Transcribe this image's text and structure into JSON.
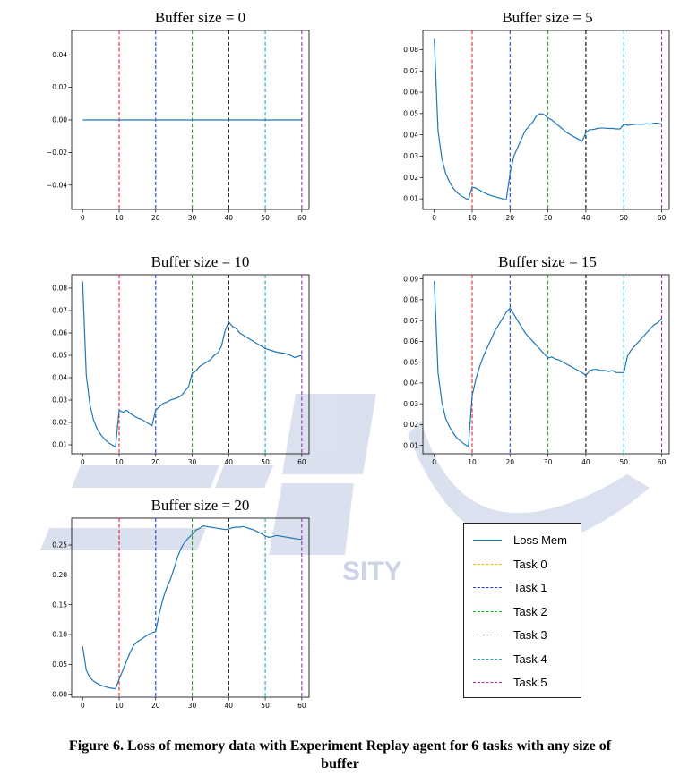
{
  "chart_data": [
    {
      "type": "line",
      "title": "Buffer size = 0",
      "xlim": [
        -3,
        62
      ],
      "ylim": [
        -0.055,
        0.055
      ],
      "xticks": [
        0,
        10,
        20,
        30,
        40,
        50,
        60
      ],
      "yticks": [
        -0.04,
        -0.02,
        0.0,
        0.02,
        0.04
      ],
      "ytick_labels": [
        "−0.04",
        "−0.02",
        "0.00",
        "0.02",
        "0.04"
      ],
      "task_boundaries": [
        10,
        20,
        30,
        40,
        50,
        60
      ],
      "series": [
        {
          "name": "Loss Mem",
          "x": [
            0,
            60
          ],
          "y": [
            0,
            0
          ]
        }
      ]
    },
    {
      "type": "line",
      "title": "Buffer size = 5",
      "xlim": [
        -3,
        62
      ],
      "ylim": [
        0.005,
        0.089
      ],
      "xticks": [
        0,
        10,
        20,
        30,
        40,
        50,
        60
      ],
      "yticks": [
        0.01,
        0.02,
        0.03,
        0.04,
        0.05,
        0.06,
        0.07,
        0.08
      ],
      "ytick_labels": [
        "0.01",
        "0.02",
        "0.03",
        "0.04",
        "0.05",
        "0.06",
        "0.07",
        "0.08"
      ],
      "task_boundaries": [
        10,
        20,
        30,
        40,
        50,
        60
      ],
      "series": [
        {
          "name": "Loss Mem",
          "x": [
            0,
            1,
            2,
            3,
            4,
            5,
            6,
            7,
            8,
            9,
            10,
            11,
            12,
            13,
            14,
            15,
            16,
            17,
            18,
            19,
            20,
            21,
            22,
            23,
            24,
            25,
            26,
            27,
            28,
            29,
            30,
            31,
            32,
            33,
            34,
            35,
            36,
            37,
            38,
            39,
            40,
            41,
            42,
            43,
            44,
            45,
            46,
            47,
            48,
            49,
            50,
            51,
            52,
            53,
            54,
            55,
            56,
            57,
            58,
            59,
            60
          ],
          "y": [
            0.085,
            0.042,
            0.029,
            0.022,
            0.018,
            0.015,
            0.013,
            0.0115,
            0.0105,
            0.0095,
            0.0155,
            0.015,
            0.014,
            0.013,
            0.0122,
            0.0115,
            0.011,
            0.0105,
            0.01,
            0.0095,
            0.022,
            0.03,
            0.034,
            0.038,
            0.042,
            0.044,
            0.046,
            0.049,
            0.05,
            0.0495,
            0.048,
            0.047,
            0.0455,
            0.044,
            0.0425,
            0.041,
            0.04,
            0.039,
            0.038,
            0.037,
            0.041,
            0.0425,
            0.0425,
            0.043,
            0.0432,
            0.0432,
            0.043,
            0.043,
            0.0428,
            0.0428,
            0.045,
            0.0445,
            0.0448,
            0.045,
            0.045,
            0.045,
            0.0452,
            0.045,
            0.0455,
            0.0455,
            0.045
          ]
        }
      ]
    },
    {
      "type": "line",
      "title": "Buffer size = 10",
      "xlim": [
        -3,
        62
      ],
      "ylim": [
        0.006,
        0.086
      ],
      "xticks": [
        0,
        10,
        20,
        30,
        40,
        50,
        60
      ],
      "yticks": [
        0.01,
        0.02,
        0.03,
        0.04,
        0.05,
        0.06,
        0.07,
        0.08
      ],
      "ytick_labels": [
        "0.01",
        "0.02",
        "0.03",
        "0.04",
        "0.05",
        "0.06",
        "0.07",
        "0.08"
      ],
      "task_boundaries": [
        10,
        20,
        30,
        40,
        50,
        60
      ],
      "series": [
        {
          "name": "Loss Mem",
          "x": [
            0,
            1,
            2,
            3,
            4,
            5,
            6,
            7,
            8,
            9,
            10,
            11,
            12,
            13,
            14,
            15,
            16,
            17,
            18,
            19,
            20,
            21,
            22,
            23,
            24,
            25,
            26,
            27,
            28,
            29,
            30,
            31,
            32,
            33,
            34,
            35,
            36,
            37,
            38,
            39,
            40,
            41,
            42,
            43,
            44,
            45,
            46,
            47,
            48,
            49,
            50,
            51,
            52,
            53,
            54,
            55,
            56,
            57,
            58,
            59,
            60
          ],
          "y": [
            0.083,
            0.041,
            0.028,
            0.021,
            0.017,
            0.0145,
            0.0125,
            0.011,
            0.01,
            0.009,
            0.0255,
            0.0245,
            0.0255,
            0.024,
            0.023,
            0.022,
            0.0215,
            0.0205,
            0.0195,
            0.0185,
            0.0255,
            0.027,
            0.0285,
            0.029,
            0.03,
            0.0305,
            0.031,
            0.032,
            0.034,
            0.036,
            0.042,
            0.043,
            0.045,
            0.046,
            0.047,
            0.048,
            0.05,
            0.051,
            0.054,
            0.061,
            0.065,
            0.063,
            0.062,
            0.06,
            0.059,
            0.058,
            0.057,
            0.056,
            0.055,
            0.054,
            0.053,
            0.0525,
            0.052,
            0.0515,
            0.0512,
            0.051,
            0.0505,
            0.05,
            0.049,
            0.0495,
            0.05
          ]
        }
      ]
    },
    {
      "type": "line",
      "title": "Buffer size = 15",
      "xlim": [
        -3,
        62
      ],
      "ylim": [
        0.006,
        0.092
      ],
      "xticks": [
        0,
        10,
        20,
        30,
        40,
        50,
        60
      ],
      "yticks": [
        0.01,
        0.02,
        0.03,
        0.04,
        0.05,
        0.06,
        0.07,
        0.08,
        0.09
      ],
      "ytick_labels": [
        "0.01",
        "0.02",
        "0.03",
        "0.04",
        "0.05",
        "0.06",
        "0.07",
        "0.08",
        "0.09"
      ],
      "task_boundaries": [
        10,
        20,
        30,
        40,
        50,
        60
      ],
      "series": [
        {
          "name": "Loss Mem",
          "x": [
            0,
            1,
            2,
            3,
            4,
            5,
            6,
            7,
            8,
            9,
            10,
            11,
            12,
            13,
            14,
            15,
            16,
            17,
            18,
            19,
            20,
            21,
            22,
            23,
            24,
            25,
            26,
            27,
            28,
            29,
            30,
            31,
            32,
            33,
            34,
            35,
            36,
            37,
            38,
            39,
            40,
            41,
            42,
            43,
            44,
            45,
            46,
            47,
            48,
            49,
            50,
            51,
            52,
            53,
            54,
            55,
            56,
            57,
            58,
            59,
            60
          ],
          "y": [
            0.089,
            0.045,
            0.031,
            0.023,
            0.019,
            0.016,
            0.0135,
            0.012,
            0.0105,
            0.0095,
            0.034,
            0.042,
            0.048,
            0.053,
            0.057,
            0.061,
            0.065,
            0.068,
            0.071,
            0.074,
            0.076,
            0.073,
            0.07,
            0.067,
            0.064,
            0.062,
            0.06,
            0.058,
            0.056,
            0.054,
            0.052,
            0.0525,
            0.0515,
            0.051,
            0.05,
            0.049,
            0.048,
            0.047,
            0.046,
            0.045,
            0.0435,
            0.046,
            0.0465,
            0.0465,
            0.046,
            0.046,
            0.0455,
            0.046,
            0.045,
            0.045,
            0.045,
            0.053,
            0.056,
            0.058,
            0.06,
            0.062,
            0.064,
            0.066,
            0.068,
            0.069,
            0.071
          ]
        }
      ]
    },
    {
      "type": "line",
      "title": "Buffer size = 20",
      "xlim": [
        -3,
        62
      ],
      "ylim": [
        -0.005,
        0.295
      ],
      "xticks": [
        0,
        10,
        20,
        30,
        40,
        50,
        60
      ],
      "yticks": [
        0.0,
        0.05,
        0.1,
        0.15,
        0.2,
        0.25
      ],
      "ytick_labels": [
        "0.00",
        "0.05",
        "0.10",
        "0.15",
        "0.20",
        "0.25"
      ],
      "task_boundaries": [
        10,
        20,
        30,
        40,
        50,
        60
      ],
      "series": [
        {
          "name": "Loss Mem",
          "x": [
            0,
            1,
            2,
            3,
            4,
            5,
            6,
            7,
            8,
            9,
            10,
            11,
            12,
            13,
            14,
            15,
            16,
            17,
            18,
            19,
            20,
            21,
            22,
            23,
            24,
            25,
            26,
            27,
            28,
            29,
            30,
            31,
            32,
            33,
            34,
            35,
            36,
            37,
            38,
            39,
            40,
            41,
            42,
            43,
            44,
            45,
            46,
            47,
            48,
            49,
            50,
            51,
            52,
            53,
            54,
            55,
            56,
            57,
            58,
            59,
            60
          ],
          "y": [
            0.08,
            0.04,
            0.028,
            0.022,
            0.018,
            0.015,
            0.013,
            0.011,
            0.01,
            0.009,
            0.025,
            0.04,
            0.055,
            0.07,
            0.082,
            0.088,
            0.092,
            0.096,
            0.1,
            0.103,
            0.105,
            0.135,
            0.16,
            0.178,
            0.192,
            0.21,
            0.23,
            0.245,
            0.255,
            0.262,
            0.268,
            0.275,
            0.278,
            0.282,
            0.281,
            0.28,
            0.279,
            0.278,
            0.277,
            0.276,
            0.277,
            0.279,
            0.28,
            0.28,
            0.281,
            0.279,
            0.277,
            0.275,
            0.272,
            0.269,
            0.265,
            0.263,
            0.264,
            0.266,
            0.265,
            0.264,
            0.263,
            0.262,
            0.261,
            0.26,
            0.259
          ]
        }
      ]
    }
  ],
  "legend": {
    "items": [
      {
        "label": "Loss Mem",
        "color": "#1f77b4",
        "style": "solid"
      },
      {
        "label": "Task 0",
        "color": "#ffb800",
        "style": "dashed"
      },
      {
        "label": "Task 1",
        "color": "#1f3fd6",
        "style": "dashed"
      },
      {
        "label": "Task 2",
        "color": "#22aa22",
        "style": "dashed"
      },
      {
        "label": "Task 3",
        "color": "#000000",
        "style": "dashed"
      },
      {
        "label": "Task 4",
        "color": "#17a8b8",
        "style": "dashed"
      },
      {
        "label": "Task 5",
        "color": "#9b2fb5",
        "style": "dashed"
      }
    ]
  },
  "boundary_colors": [
    "#e8242c",
    "#1f3fd6",
    "#22aa22",
    "#000000",
    "#17a8b8",
    "#9b2fb5"
  ],
  "line_color": "#1f77b4",
  "watermark_text": "SITY",
  "caption": {
    "line1": "Figure 6. Loss of memory data with Experiment Replay agent for 6 tasks with any size of",
    "line2": "buffer"
  }
}
